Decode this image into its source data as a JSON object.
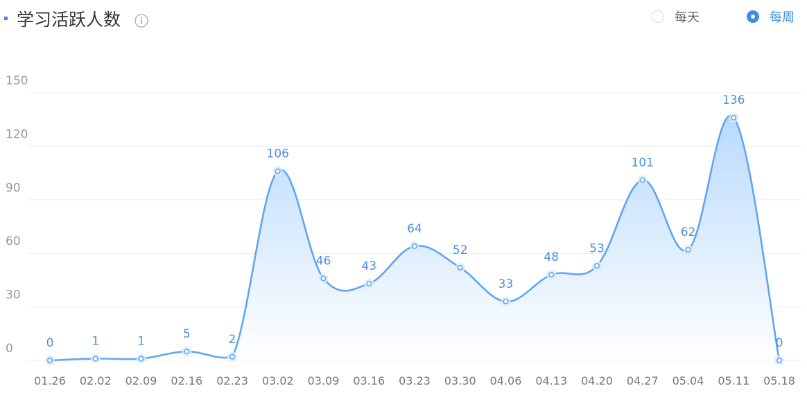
{
  "header": {
    "title": "学习活跃人数",
    "info_icon": "info-circle-icon"
  },
  "toggle": {
    "options": [
      {
        "label": "每天",
        "checked": false
      },
      {
        "label": "每周",
        "checked": true
      }
    ]
  },
  "colors": {
    "accent": "#3a8ee6",
    "line": "#5ea6f5",
    "area_top": "#b9dafd",
    "area_bottom": "#ffffff",
    "grid": "#ececec",
    "title_marker": "#4d7cf0"
  },
  "chart_data": {
    "type": "area",
    "title": "学习活跃人数",
    "x": [
      "01.26",
      "02.02",
      "02.09",
      "02.16",
      "02.23",
      "03.02",
      "03.09",
      "03.16",
      "03.23",
      "03.30",
      "04.06",
      "04.13",
      "04.20",
      "04.27",
      "05.04",
      "05.11",
      "05.18"
    ],
    "values": [
      0,
      1,
      1,
      5,
      2,
      106,
      46,
      43,
      64,
      52,
      33,
      48,
      53,
      101,
      62,
      136,
      0
    ],
    "data_labels": [
      "0",
      "1",
      "1",
      "5",
      "2",
      "106",
      "46",
      "43",
      "64",
      "52",
      "33",
      "48",
      "53",
      "101",
      "62",
      "136",
      "0"
    ],
    "yticks": [
      "0",
      "30",
      "60",
      "90",
      "120",
      "150"
    ],
    "ylim": [
      0,
      150
    ],
    "smooth": true,
    "grid": true,
    "legend": "none"
  }
}
